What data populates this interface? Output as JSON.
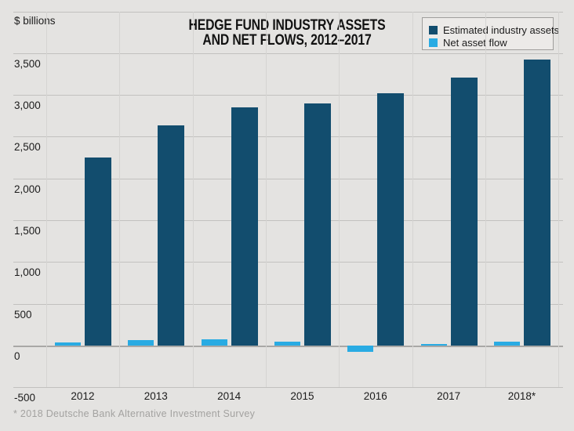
{
  "page": {
    "unit_label": "$ billions",
    "title_line1": "HEDGE FUND INDUSTRY ASSETS",
    "title_line2": "AND NET FLOWS, 2012–2017",
    "footnote": "* 2018 Deutsche Bank Alternative Investment Survey",
    "background_color": "#e4e3e1"
  },
  "legend": {
    "items": [
      {
        "label": "Estimated industry assets",
        "color": "#124d6e"
      },
      {
        "label": "Net asset flow",
        "color": "#29abe3"
      }
    ]
  },
  "chart_data": {
    "type": "bar",
    "title": "HEDGE FUND INDUSTRY ASSETS AND NET FLOWS, 2012–2017",
    "ylabel": "$ billions",
    "xlabel": "",
    "categories": [
      "2012",
      "2013",
      "2014",
      "2015",
      "2016",
      "2017",
      "2018*"
    ],
    "series": [
      {
        "name": "Estimated industry assets",
        "color": "#124d6e",
        "values": [
          2250,
          2630,
          2850,
          2900,
          3020,
          3210,
          3420
        ]
      },
      {
        "name": "Net asset flow",
        "color": "#29abe3",
        "values": [
          35,
          65,
          80,
          45,
          -70,
          15,
          50
        ]
      }
    ],
    "y_ticks": [
      3500,
      3000,
      2500,
      2000,
      1500,
      1000,
      500,
      0,
      -500
    ],
    "ylim": [
      -500,
      4000
    ],
    "grid": true,
    "legend_position": "top-right",
    "footnote": "* 2018 Deutsche Bank Alternative Investment Survey"
  }
}
